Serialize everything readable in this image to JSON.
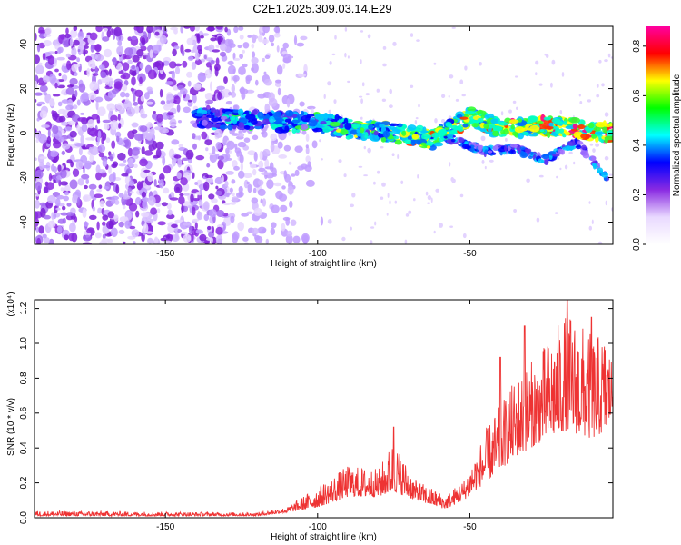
{
  "title": "C2E1.2025.309.03.14.E29",
  "chart_data": [
    {
      "type": "heatmap",
      "xlabel": "Height of straight line (km)",
      "ylabel": "Frequency (Hz)",
      "xlim": [
        -193,
        -3
      ],
      "ylim": [
        -50,
        48
      ],
      "x_ticks": [
        -150,
        -100,
        -50
      ],
      "y_ticks": [
        -40,
        -20,
        0,
        20,
        40
      ],
      "colorbar": {
        "label": "Normalized spectral amplitude",
        "range": [
          0.0,
          0.88
        ],
        "ticks": [
          0.0,
          0.2,
          0.4,
          0.6,
          0.8
        ],
        "colormap": [
          "#ffffff",
          "#e9d9ff",
          "#8a2be2",
          "#0000ff",
          "#00ffff",
          "#00ff00",
          "#ffff00",
          "#ff0000",
          "#ff00a0"
        ]
      },
      "band": [
        {
          "x": -140,
          "freq": 7
        },
        {
          "x": -125,
          "freq": 6
        },
        {
          "x": -110,
          "freq": 5
        },
        {
          "x": -100,
          "freq": 5
        },
        {
          "x": -90,
          "freq": 2
        },
        {
          "x": -80,
          "freq": 1
        },
        {
          "x": -70,
          "freq": -1
        },
        {
          "x": -62,
          "freq": -3
        },
        {
          "x": -55,
          "freq": 3
        },
        {
          "x": -50,
          "freq": 8
        },
        {
          "x": -40,
          "freq": 2
        },
        {
          "x": -30,
          "freq": 3
        },
        {
          "x": -20,
          "freq": 3
        },
        {
          "x": -10,
          "freq": 1
        },
        {
          "x": -3,
          "freq": 0
        }
      ],
      "branch": [
        {
          "x": -58,
          "freq": -2
        },
        {
          "x": -45,
          "freq": -8
        },
        {
          "x": -35,
          "freq": -7
        },
        {
          "x": -25,
          "freq": -12
        },
        {
          "x": -15,
          "freq": -4
        },
        {
          "x": -5,
          "freq": -20
        }
      ]
    },
    {
      "type": "line",
      "xlabel": "Height of straight line (km)",
      "ylabel": "SNR (10 * v/v)",
      "scale_label": "(x10⁴)",
      "xlim": [
        -193,
        -3
      ],
      "ylim": [
        0.0,
        1.25
      ],
      "x_ticks": [
        -150,
        -100,
        -50
      ],
      "y_ticks": [
        "0.0",
        "0.2",
        "0.4",
        "0.6",
        "0.8",
        "1.0",
        "1.2"
      ],
      "color": "#ee3333",
      "envelope": [
        {
          "x": -193,
          "base": 0.01,
          "amp": 0.03
        },
        {
          "x": -120,
          "base": 0.01,
          "amp": 0.02
        },
        {
          "x": -110,
          "base": 0.03,
          "amp": 0.03
        },
        {
          "x": -100,
          "base": 0.06,
          "amp": 0.12
        },
        {
          "x": -90,
          "base": 0.12,
          "amp": 0.18
        },
        {
          "x": -80,
          "base": 0.12,
          "amp": 0.16
        },
        {
          "x": -75,
          "base": 0.15,
          "amp": 0.3
        },
        {
          "x": -68,
          "base": 0.1,
          "amp": 0.12
        },
        {
          "x": -58,
          "base": 0.05,
          "amp": 0.08
        },
        {
          "x": -52,
          "base": 0.1,
          "amp": 0.12
        },
        {
          "x": -45,
          "base": 0.2,
          "amp": 0.3
        },
        {
          "x": -35,
          "base": 0.35,
          "amp": 0.45
        },
        {
          "x": -25,
          "base": 0.45,
          "amp": 0.55
        },
        {
          "x": -18,
          "base": 0.5,
          "amp": 0.7
        },
        {
          "x": -10,
          "base": 0.45,
          "amp": 0.6
        },
        {
          "x": -5,
          "base": 0.5,
          "amp": 0.55
        },
        {
          "x": -3,
          "base": 0.6,
          "amp": 0.3
        }
      ],
      "peaks": [
        {
          "x": -75,
          "y": 0.52
        },
        {
          "x": -40,
          "y": 0.92
        },
        {
          "x": -32,
          "y": 1.1
        },
        {
          "x": -18,
          "y": 1.28
        },
        {
          "x": -10,
          "y": 1.15
        }
      ]
    }
  ]
}
